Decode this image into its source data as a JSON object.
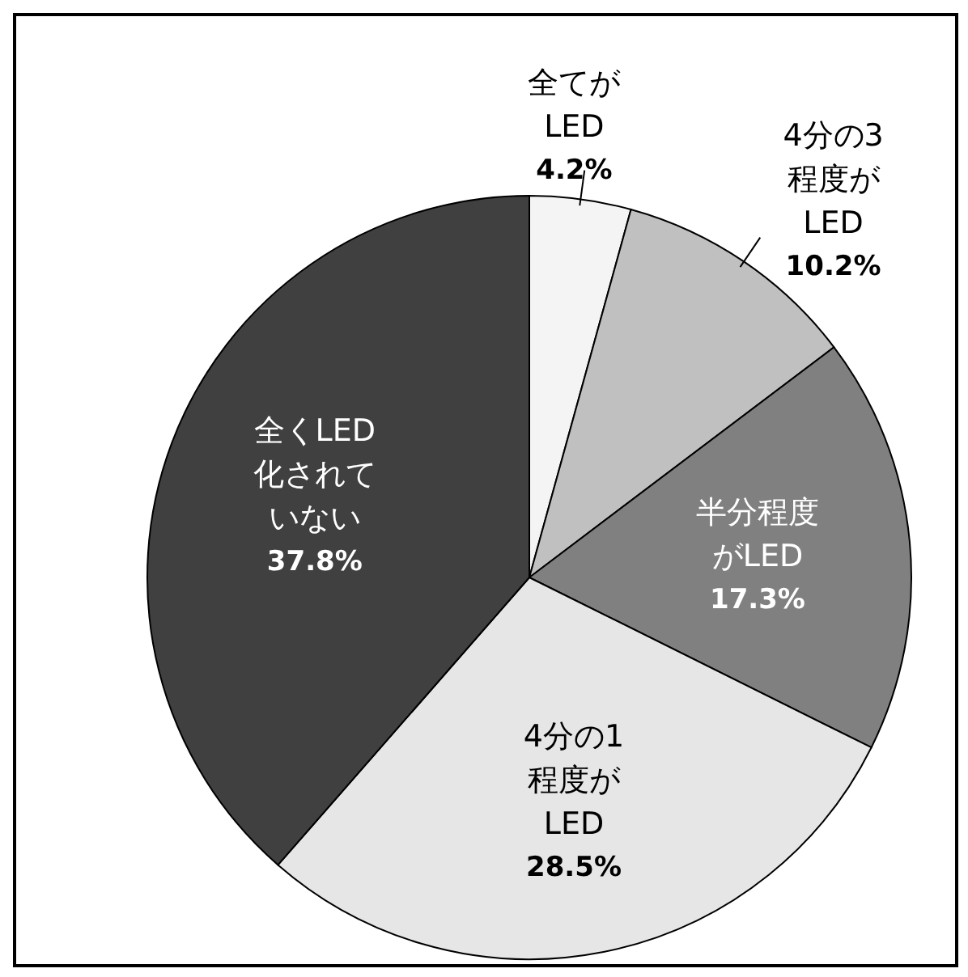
{
  "chart_data": {
    "type": "pie",
    "categories": [
      "全てがLED",
      "4分の3程度がLED",
      "半分程度がLED",
      "4分の1程度がLED",
      "全くLED化されていない"
    ],
    "values": [
      4.2,
      10.2,
      17.3,
      28.5,
      37.8
    ],
    "value_labels": [
      "4.2%",
      "10.2%",
      "17.3%",
      "28.5%",
      "37.8%"
    ],
    "colors": [
      "#f4f4f4",
      "#c0c0c0",
      "#808080",
      "#e6e6e6",
      "#404040"
    ],
    "legend": false
  }
}
